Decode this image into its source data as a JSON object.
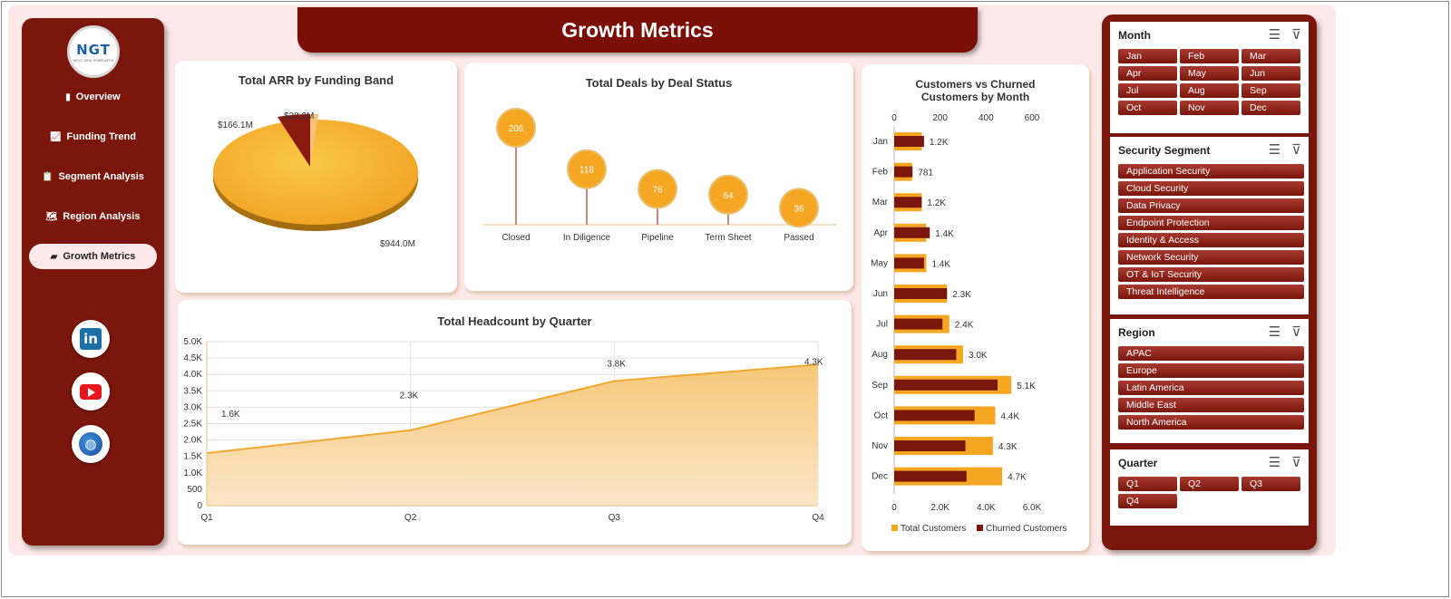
{
  "logo": {
    "text": "NGT",
    "sub": "NEXT GEN TEMPLATES"
  },
  "sidebar": {
    "items": [
      {
        "label": "Overview",
        "icon": "bar-chart-icon",
        "glyph": "▮"
      },
      {
        "label": "Funding Trend",
        "icon": "line-chart-icon",
        "glyph": "📈"
      },
      {
        "label": "Segment Analysis",
        "icon": "clipboard-icon",
        "glyph": "📋"
      },
      {
        "label": "Region Analysis",
        "icon": "world-map-icon",
        "glyph": "🗺"
      },
      {
        "label": "Growth Metrics",
        "icon": "folder-icon",
        "glyph": "▰"
      }
    ],
    "active": "Growth Metrics"
  },
  "social": [
    {
      "name": "linkedin"
    },
    {
      "name": "youtube"
    },
    {
      "name": "website"
    }
  ],
  "header": {
    "title": "Growth Metrics"
  },
  "colors": {
    "dark": "#7a160c",
    "orange": "#f5a623",
    "panel_bg": "#fde9e9"
  },
  "charts": {
    "arr": {
      "chart_data": {
        "type": "pie",
        "title": "Total ARR by Funding Band",
        "slices": [
          {
            "value": 944.0,
            "label": "$944.0M"
          },
          {
            "value": 166.1,
            "label": "$166.1M"
          },
          {
            "value": 28.2,
            "label": "$28.2M"
          }
        ]
      }
    },
    "deals": {
      "chart_data": {
        "type": "lollipop",
        "title": "Total Deals by Deal Status",
        "categories": [
          "Closed",
          "In Diligence",
          "Pipeline",
          "Term Sheet",
          "Passed"
        ],
        "values": [
          206,
          118,
          76,
          64,
          36
        ]
      }
    },
    "headcount": {
      "chart_data": {
        "type": "area",
        "title": "Total Headcount by Quarter",
        "categories": [
          "Q1",
          "Q2",
          "Q3",
          "Q4"
        ],
        "values": [
          1600,
          2300,
          3800,
          4300
        ],
        "labels": [
          "1.6K",
          "2.3K",
          "3.8K",
          "4.3K"
        ],
        "ylim": [
          0,
          5000
        ],
        "yticks": [
          "0",
          "500",
          "1.0K",
          "1.5K",
          "2.0K",
          "2.5K",
          "3.0K",
          "3.5K",
          "4.0K",
          "4.5K",
          "5.0K"
        ],
        "grid": true
      }
    },
    "customers": {
      "chart_data": {
        "type": "bar",
        "orientation": "horizontal",
        "title": "Customers vs Churned Customers by Month",
        "categories": [
          "Jan",
          "Feb",
          "Mar",
          "Apr",
          "May",
          "Jun",
          "Jul",
          "Aug",
          "Sep",
          "Oct",
          "Nov",
          "Dec"
        ],
        "series": [
          {
            "name": "Total Customers",
            "values": [
              1200,
              781,
              1200,
              1400,
              1400,
              2300,
              2400,
              3000,
              5100,
              4400,
              4300,
              4700
            ]
          },
          {
            "name": "Churned Customers",
            "values": [
              130,
              80,
              120,
              155,
              130,
              230,
              210,
              270,
              450,
              350,
              310,
              315
            ]
          }
        ],
        "labels": [
          "1.2K",
          "781",
          "1.2K",
          "1.4K",
          "1.4K",
          "2.3K",
          "2.4K",
          "3.0K",
          "5.1K",
          "4.4K",
          "4.3K",
          "4.7K"
        ],
        "top_axis": [
          "0",
          "200",
          "400",
          "600"
        ],
        "bottom_axis": [
          "0",
          "2.0K",
          "4.0K",
          "6.0K"
        ],
        "legend": "bottom"
      }
    }
  },
  "slicers": [
    {
      "title": "Month",
      "items": [
        "Jan",
        "Feb",
        "Mar",
        "Apr",
        "May",
        "Jun",
        "Jul",
        "Aug",
        "Sep",
        "Oct",
        "Nov",
        "Dec"
      ]
    },
    {
      "title": "Security Segment",
      "items": [
        "Application Security",
        "Cloud Security",
        "Data Privacy",
        "Endpoint Protection",
        "Identity & Access",
        "Network Security",
        "OT & IoT Security",
        "Threat Intelligence"
      ]
    },
    {
      "title": "Region",
      "items": [
        "APAC",
        "Europe",
        "Latin America",
        "Middle East",
        "North America"
      ]
    },
    {
      "title": "Quarter",
      "items": [
        "Q1",
        "Q2",
        "Q3",
        "Q4"
      ]
    }
  ]
}
